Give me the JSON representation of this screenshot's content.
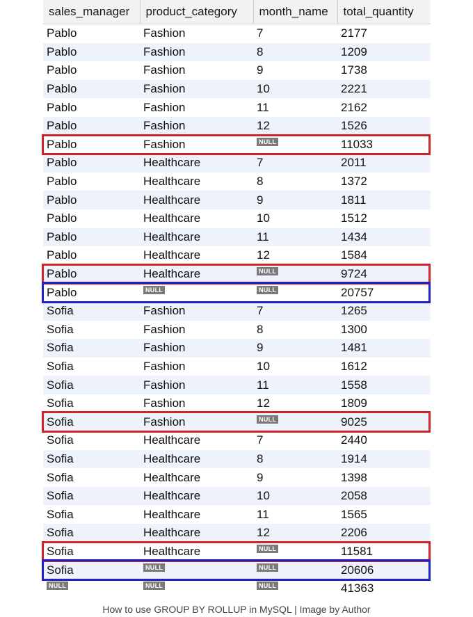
{
  "grid": {
    "columns": [
      "sales_manager",
      "product_category",
      "month_name",
      "total_quantity"
    ],
    "rows": [
      [
        "Pablo",
        "Fashion",
        "7",
        "2177"
      ],
      [
        "Pablo",
        "Fashion",
        "8",
        "1209"
      ],
      [
        "Pablo",
        "Fashion",
        "9",
        "1738"
      ],
      [
        "Pablo",
        "Fashion",
        "10",
        "2221"
      ],
      [
        "Pablo",
        "Fashion",
        "11",
        "2162"
      ],
      [
        "Pablo",
        "Fashion",
        "12",
        "1526"
      ],
      [
        "Pablo",
        "Fashion",
        "NULL",
        "11033"
      ],
      [
        "Pablo",
        "Healthcare",
        "7",
        "2011"
      ],
      [
        "Pablo",
        "Healthcare",
        "8",
        "1372"
      ],
      [
        "Pablo",
        "Healthcare",
        "9",
        "1811"
      ],
      [
        "Pablo",
        "Healthcare",
        "10",
        "1512"
      ],
      [
        "Pablo",
        "Healthcare",
        "11",
        "1434"
      ],
      [
        "Pablo",
        "Healthcare",
        "12",
        "1584"
      ],
      [
        "Pablo",
        "Healthcare",
        "NULL",
        "9724"
      ],
      [
        "Pablo",
        "NULL",
        "NULL",
        "20757"
      ],
      [
        "Sofia",
        "Fashion",
        "7",
        "1265"
      ],
      [
        "Sofia",
        "Fashion",
        "8",
        "1300"
      ],
      [
        "Sofia",
        "Fashion",
        "9",
        "1481"
      ],
      [
        "Sofia",
        "Fashion",
        "10",
        "1612"
      ],
      [
        "Sofia",
        "Fashion",
        "11",
        "1558"
      ],
      [
        "Sofia",
        "Fashion",
        "12",
        "1809"
      ],
      [
        "Sofia",
        "Fashion",
        "NULL",
        "9025"
      ],
      [
        "Sofia",
        "Healthcare",
        "7",
        "2440"
      ],
      [
        "Sofia",
        "Healthcare",
        "8",
        "1914"
      ],
      [
        "Sofia",
        "Healthcare",
        "9",
        "1398"
      ],
      [
        "Sofia",
        "Healthcare",
        "10",
        "2058"
      ],
      [
        "Sofia",
        "Healthcare",
        "11",
        "1565"
      ],
      [
        "Sofia",
        "Healthcare",
        "12",
        "2206"
      ],
      [
        "Sofia",
        "Healthcare",
        "NULL",
        "11581"
      ],
      [
        "Sofia",
        "NULL",
        "NULL",
        "20606"
      ],
      [
        "NULL",
        "NULL",
        "NULL",
        "41363"
      ]
    ],
    "null_token": "NULL"
  },
  "highlights": {
    "red_rows": [
      6,
      13,
      21,
      28
    ],
    "blue_rows": [
      14,
      29
    ],
    "red_color": "#d0242b",
    "blue_color": "#2020c8"
  },
  "caption": "How to use GROUP BY ROLLUP in MySQL | Image by Author"
}
